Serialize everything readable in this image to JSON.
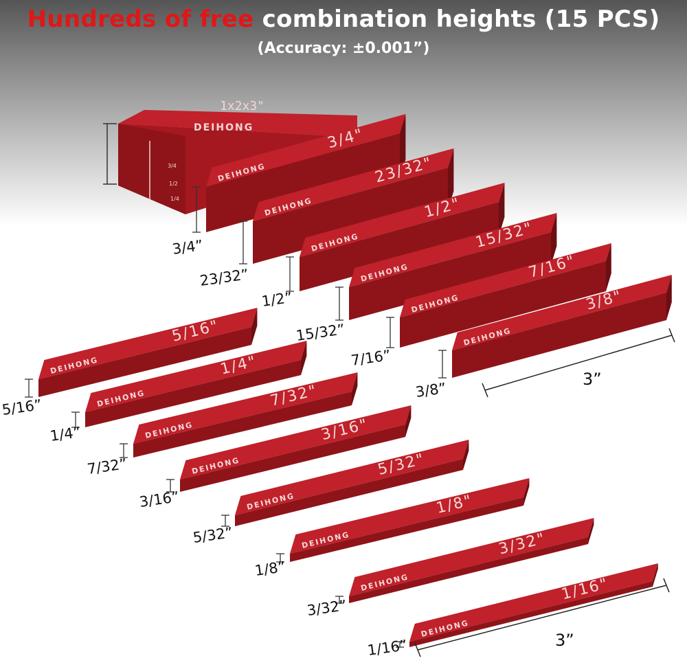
{
  "header": {
    "title_highlight": "Hundreds of free",
    "title_rest": "combination heights (15 PCS)",
    "subtitle": "(Accuracy: ±0.001”)"
  },
  "brand": "DEIHONG",
  "big_block": {
    "label": "1x2x3\"",
    "ruler_marks": [
      "3/4",
      "1/2",
      "1/4"
    ]
  },
  "upper_set": [
    {
      "top_label": "3/4\"",
      "height_label": "3/4”"
    },
    {
      "top_label": "23/32\"",
      "height_label": "23/32”"
    },
    {
      "top_label": "1/2\"",
      "height_label": "1/2”"
    },
    {
      "top_label": "15/32\"",
      "height_label": "15/32”"
    },
    {
      "top_label": "7/16\"",
      "height_label": "7/16”"
    },
    {
      "top_label": "3/8\"",
      "height_label": "3/8”"
    }
  ],
  "lower_set": [
    {
      "top_label": "5/16\"",
      "height_label": "5/16”"
    },
    {
      "top_label": "1/4\"",
      "height_label": "1/4”"
    },
    {
      "top_label": "7/32\"",
      "height_label": "7/32”"
    },
    {
      "top_label": "3/16\"",
      "height_label": "3/16”"
    },
    {
      "top_label": "5/32\"",
      "height_label": "5/32”"
    },
    {
      "top_label": "1/8\"",
      "height_label": "1/8”"
    },
    {
      "top_label": "3/32\"",
      "height_label": "3/32”"
    },
    {
      "top_label": "1/16\"",
      "height_label": "1/16”"
    }
  ],
  "length_labels": {
    "upper": "3”",
    "lower": "3”"
  },
  "colors": {
    "highlight": "#e01717",
    "block_top": "#c0212a",
    "block_front": "#8e1419",
    "block_side": "#6d0e12"
  }
}
